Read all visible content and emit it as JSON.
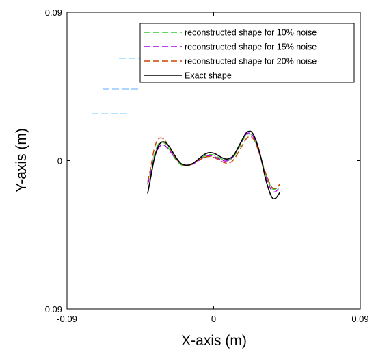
{
  "chart_data": {
    "type": "line",
    "title": "",
    "xlabel": "X-axis (m)",
    "ylabel": "Y-axis (m)",
    "xlim": [
      -0.09,
      0.09
    ],
    "ylim": [
      -0.09,
      0.09
    ],
    "x_ticks": [
      "-0.09",
      "0",
      "0.09"
    ],
    "y_ticks": [
      "-0.09",
      "0",
      "0.09"
    ],
    "grid": false,
    "legend_position": "top-right",
    "series": [
      {
        "name": "reconstructed shape for 10% noise",
        "color": "#33cc33",
        "style": "dashed",
        "x": [
          -0.0405,
          -0.0385,
          -0.0365,
          -0.0345,
          -0.0325,
          -0.03,
          -0.027,
          -0.0235,
          -0.02,
          -0.0165,
          -0.013,
          -0.0095,
          -0.006,
          -0.003,
          0.0,
          0.003,
          0.0065,
          0.0095,
          0.0125,
          0.016,
          0.0195,
          0.0215,
          0.0235,
          0.026,
          0.029,
          0.032,
          0.0355,
          0.038,
          0.0405
        ],
        "y": [
          -0.014,
          -0.0055,
          0.003,
          0.009,
          0.0112,
          0.0105,
          0.0065,
          0.001,
          -0.0025,
          -0.0032,
          -0.002,
          0.0003,
          0.0025,
          0.0036,
          0.0034,
          0.002,
          0.0003,
          0.0003,
          0.0025,
          0.0085,
          0.0148,
          0.0162,
          0.0155,
          0.0105,
          0.0015,
          -0.0085,
          -0.0165,
          -0.0172,
          -0.0148
        ]
      },
      {
        "name": "reconstructed shape for 15% noise",
        "color": "#aa00ee",
        "style": "dashed",
        "x": [
          -0.0405,
          -0.0385,
          -0.0365,
          -0.0345,
          -0.0325,
          -0.03,
          -0.027,
          -0.0235,
          -0.02,
          -0.0165,
          -0.013,
          -0.0095,
          -0.006,
          -0.003,
          0.0,
          0.003,
          0.0065,
          0.0095,
          0.0125,
          0.016,
          0.0195,
          0.0215,
          0.0235,
          0.026,
          0.029,
          0.032,
          0.0355,
          0.038,
          0.0405
        ],
        "y": [
          -0.0145,
          -0.0068,
          0.0012,
          0.0065,
          0.0092,
          0.0092,
          0.006,
          0.0015,
          -0.0018,
          -0.0028,
          -0.0022,
          -0.0002,
          0.002,
          0.003,
          0.0026,
          0.0012,
          -0.0002,
          0.0003,
          0.0032,
          0.0095,
          0.0155,
          0.0168,
          0.0158,
          0.0108,
          0.0012,
          -0.0095,
          -0.018,
          -0.0188,
          -0.016
        ]
      },
      {
        "name": "reconstructed shape for 20% noise",
        "color": "#cc4400",
        "style": "dashed",
        "x": [
          -0.0405,
          -0.0385,
          -0.0365,
          -0.0345,
          -0.0325,
          -0.03,
          -0.027,
          -0.0235,
          -0.02,
          -0.0165,
          -0.013,
          -0.0095,
          -0.006,
          -0.003,
          0.0,
          0.003,
          0.0065,
          0.0095,
          0.0125,
          0.016,
          0.0195,
          0.0215,
          0.0235,
          0.026,
          0.029,
          0.032,
          0.0355,
          0.038,
          0.0405
        ],
        "y": [
          -0.013,
          -0.0035,
          0.007,
          0.0125,
          0.0138,
          0.0125,
          0.0078,
          0.0018,
          -0.002,
          -0.003,
          -0.002,
          0.0002,
          0.0018,
          0.0025,
          0.002,
          0.0005,
          -0.0012,
          -0.0015,
          0.0008,
          0.0065,
          0.0125,
          0.0145,
          0.0142,
          0.01,
          0.0015,
          -0.0078,
          -0.0158,
          -0.0168,
          -0.0143
        ]
      },
      {
        "name": "Exact shape",
        "color": "#000000",
        "style": "solid",
        "x": [
          -0.0405,
          -0.0385,
          -0.0365,
          -0.0345,
          -0.0325,
          -0.03,
          -0.027,
          -0.0235,
          -0.02,
          -0.0165,
          -0.013,
          -0.0095,
          -0.006,
          -0.003,
          0.0,
          0.003,
          0.0065,
          0.0095,
          0.0125,
          0.016,
          0.0195,
          0.0215,
          0.0235,
          0.026,
          0.029,
          0.032,
          0.0355,
          0.038,
          0.0405
        ],
        "y": [
          -0.02,
          -0.0095,
          0.001,
          0.0075,
          0.0108,
          0.0112,
          0.0082,
          0.0025,
          -0.0018,
          -0.0028,
          -0.0018,
          0.0008,
          0.0035,
          0.0048,
          0.0045,
          0.003,
          0.0012,
          0.0012,
          0.0035,
          0.0098,
          0.0162,
          0.0178,
          0.0172,
          0.0122,
          0.002,
          -0.0115,
          -0.0218,
          -0.0228,
          -0.0195
        ]
      }
    ]
  }
}
